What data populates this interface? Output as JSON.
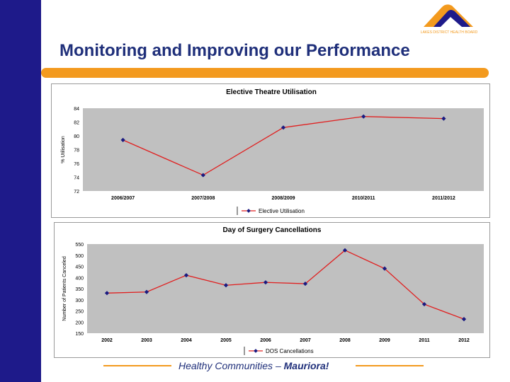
{
  "slide": {
    "title": "Monitoring and Improving our Performance",
    "logo_text": "LAKES DISTRICT HEALTH BOARD",
    "footer_main": "Healthy Communities – ",
    "footer_emph": "Mauriora!"
  },
  "colors": {
    "sidebar": "#1e1a8a",
    "accent": "#f39a1e",
    "plot_bg": "#c0c0c0",
    "line": "#e02020",
    "marker": "#1a1a80"
  },
  "chart_data": [
    {
      "type": "line",
      "title": "Elective Theatre Utilisation",
      "ylabel": "% Utilisation",
      "xlabel": "",
      "categories": [
        "2006/2007",
        "2007/2008",
        "2008/2009",
        "2010/2011",
        "2011/2012"
      ],
      "series": [
        {
          "name": "Elective Utilisation",
          "values": [
            79.4,
            74.3,
            81.2,
            82.8,
            82.5
          ]
        }
      ],
      "ylim": [
        72,
        84
      ],
      "yticks": [
        72,
        74,
        76,
        78,
        80,
        82,
        84
      ],
      "grid": false,
      "legend": "bottom"
    },
    {
      "type": "line",
      "title": "Day of Surgery Cancellations",
      "ylabel": "Number of Patients Canceled",
      "xlabel": "",
      "categories": [
        "2002",
        "2003",
        "2004",
        "2005",
        "2006",
        "2007",
        "2008",
        "2009",
        "2011",
        "2012"
      ],
      "series": [
        {
          "name": "DOS Cancellations",
          "values": [
            330,
            335,
            410,
            365,
            378,
            372,
            522,
            440,
            280,
            213
          ]
        }
      ],
      "ylim": [
        150,
        550
      ],
      "yticks": [
        150,
        200,
        250,
        300,
        350,
        400,
        450,
        500,
        550
      ],
      "grid": false,
      "legend": "bottom"
    }
  ]
}
